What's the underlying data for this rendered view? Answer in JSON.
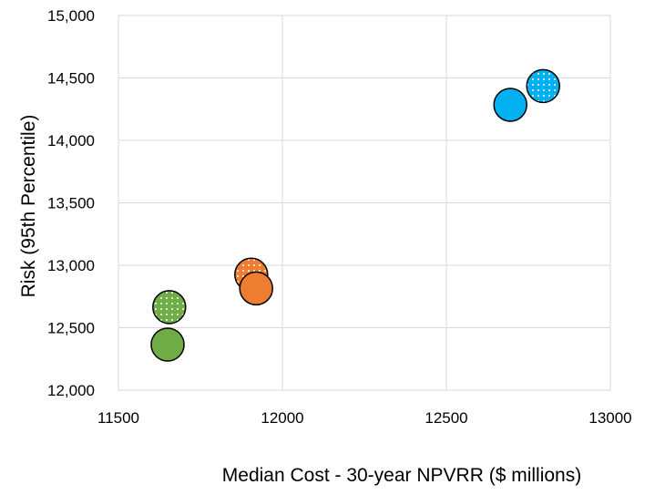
{
  "chart_data": {
    "type": "scatter",
    "xlabel": "Median Cost - 30-year NPVRR ($ millions)",
    "ylabel": "Risk  (95th Percentile)",
    "xlim": [
      11500,
      13000
    ],
    "ylim": [
      12000,
      15000
    ],
    "x_ticks": [
      "11500",
      "12000",
      "12500",
      "13000"
    ],
    "y_ticks": [
      "12,000",
      "12,500",
      "13,000",
      "13,500",
      "14,000",
      "14,500",
      "15,000"
    ],
    "grid": true,
    "legend": "none",
    "points": [
      {
        "x": 11655,
        "y": 12665,
        "color": "#70AD47",
        "pattern": "dotted"
      },
      {
        "x": 11650,
        "y": 12365,
        "color": "#70AD47",
        "pattern": "solid"
      },
      {
        "x": 11905,
        "y": 12925,
        "color": "#ED7D31",
        "pattern": "dotted"
      },
      {
        "x": 11920,
        "y": 12815,
        "color": "#ED7D31",
        "pattern": "solid"
      },
      {
        "x": 12795,
        "y": 14435,
        "color": "#00B0F0",
        "pattern": "dotted"
      },
      {
        "x": 12695,
        "y": 14285,
        "color": "#00B0F0",
        "pattern": "solid"
      }
    ]
  }
}
